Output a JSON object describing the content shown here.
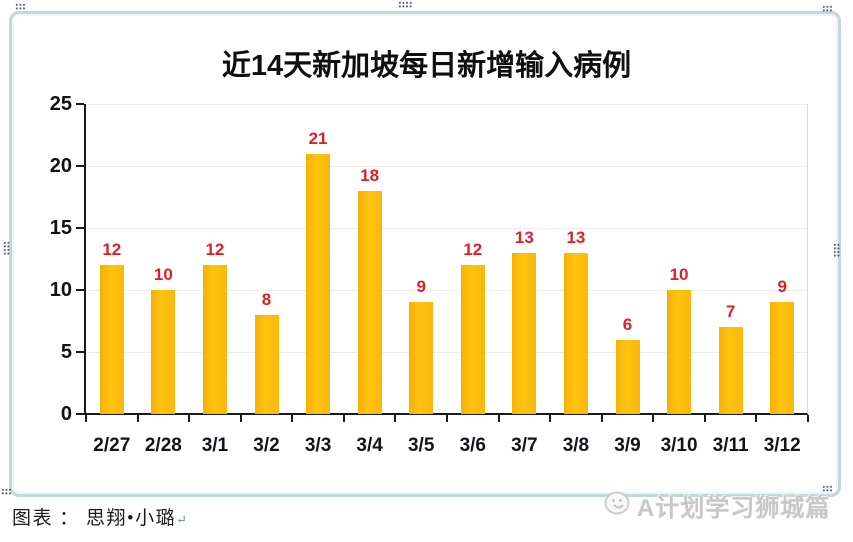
{
  "chart_data": {
    "type": "bar",
    "title": "近14天新加坡每日新增输入病例",
    "categories": [
      "2/27",
      "2/28",
      "3/1",
      "3/2",
      "3/3",
      "3/4",
      "3/5",
      "3/6",
      "3/7",
      "3/8",
      "3/9",
      "3/10",
      "3/11",
      "3/12"
    ],
    "values": [
      12,
      10,
      12,
      8,
      21,
      18,
      9,
      12,
      13,
      13,
      6,
      10,
      7,
      9
    ],
    "xlabel": "",
    "ylabel": "",
    "ylim": [
      0,
      25
    ],
    "yticks": [
      0,
      5,
      10,
      15,
      20,
      25
    ],
    "grid": true,
    "legend": "none",
    "bar_color": "#FCB90D",
    "value_label_color": "#E01E28"
  },
  "caption": {
    "text": "图表 ： 思翔•小璐",
    "return_mark": "↵"
  },
  "watermark": {
    "text": "A计划学习狮城篇",
    "icon": "mascot-face-icon"
  }
}
